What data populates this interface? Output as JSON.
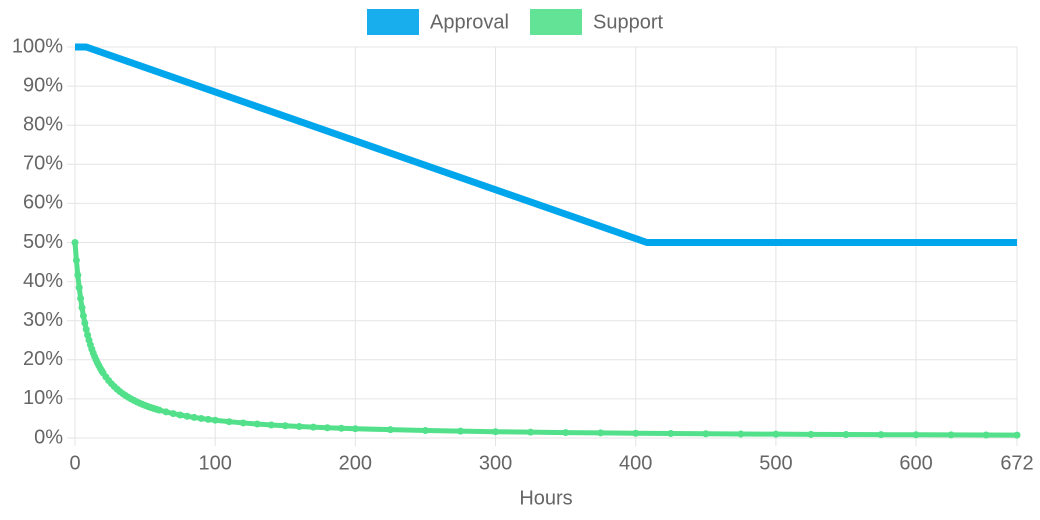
{
  "chart_data": {
    "type": "line",
    "x_label": "Hours",
    "xlim": [
      0,
      672
    ],
    "xticks": [
      0,
      100,
      200,
      300,
      400,
      500,
      600,
      672
    ],
    "ylim": [
      0,
      100
    ],
    "yticks": [
      {
        "value": 0,
        "label": "0%"
      },
      {
        "value": 10,
        "label": "10%"
      },
      {
        "value": 20,
        "label": "20%"
      },
      {
        "value": 30,
        "label": "30%"
      },
      {
        "value": 40,
        "label": "40%"
      },
      {
        "value": 50,
        "label": "50%"
      },
      {
        "value": 60,
        "label": "60%"
      },
      {
        "value": 70,
        "label": "70%"
      },
      {
        "value": 80,
        "label": "80%"
      },
      {
        "value": 90,
        "label": "90%"
      },
      {
        "value": 100,
        "label": "100%"
      }
    ],
    "grid": true,
    "legend": "top",
    "series": [
      {
        "name": "Approval",
        "color": "#00a6ec",
        "x": [
          0,
          8,
          408,
          672
        ],
        "values": [
          100,
          100,
          50,
          50
        ]
      },
      {
        "name": "Support",
        "color": "#52e08a",
        "x": [
          0,
          1,
          2,
          3,
          4,
          5,
          6,
          7,
          8,
          9,
          10,
          11,
          12,
          13,
          14,
          15,
          16,
          17,
          18,
          19,
          20,
          22,
          24,
          26,
          28,
          30,
          32,
          34,
          36,
          38,
          40,
          42,
          44,
          46,
          48,
          50,
          52,
          54,
          56,
          58,
          60,
          65,
          70,
          75,
          80,
          85,
          90,
          95,
          100,
          110,
          120,
          130,
          140,
          150,
          160,
          170,
          180,
          190,
          200,
          225,
          250,
          275,
          300,
          325,
          350,
          375,
          400,
          425,
          450,
          475,
          500,
          525,
          550,
          575,
          600,
          625,
          650,
          672
        ],
        "values": [
          50,
          45.45,
          41.67,
          38.46,
          35.71,
          33.33,
          31.25,
          29.41,
          27.78,
          26.32,
          25,
          23.81,
          22.73,
          21.74,
          20.83,
          20,
          19.23,
          18.52,
          17.86,
          17.24,
          16.67,
          15.63,
          14.71,
          13.89,
          13.16,
          12.5,
          11.9,
          11.36,
          10.87,
          10.42,
          10,
          9.62,
          9.26,
          8.93,
          8.62,
          8.33,
          8.06,
          7.81,
          7.58,
          7.35,
          7.14,
          6.67,
          6.25,
          5.88,
          5.56,
          5.26,
          5,
          4.76,
          4.55,
          4.17,
          3.85,
          3.57,
          3.33,
          3.13,
          2.94,
          2.78,
          2.63,
          2.5,
          2.38,
          2.13,
          1.92,
          1.75,
          1.61,
          1.49,
          1.39,
          1.3,
          1.22,
          1.15,
          1.09,
          1.03,
          0.98,
          0.93,
          0.89,
          0.85,
          0.82,
          0.79,
          0.76,
          0.74
        ]
      }
    ]
  }
}
